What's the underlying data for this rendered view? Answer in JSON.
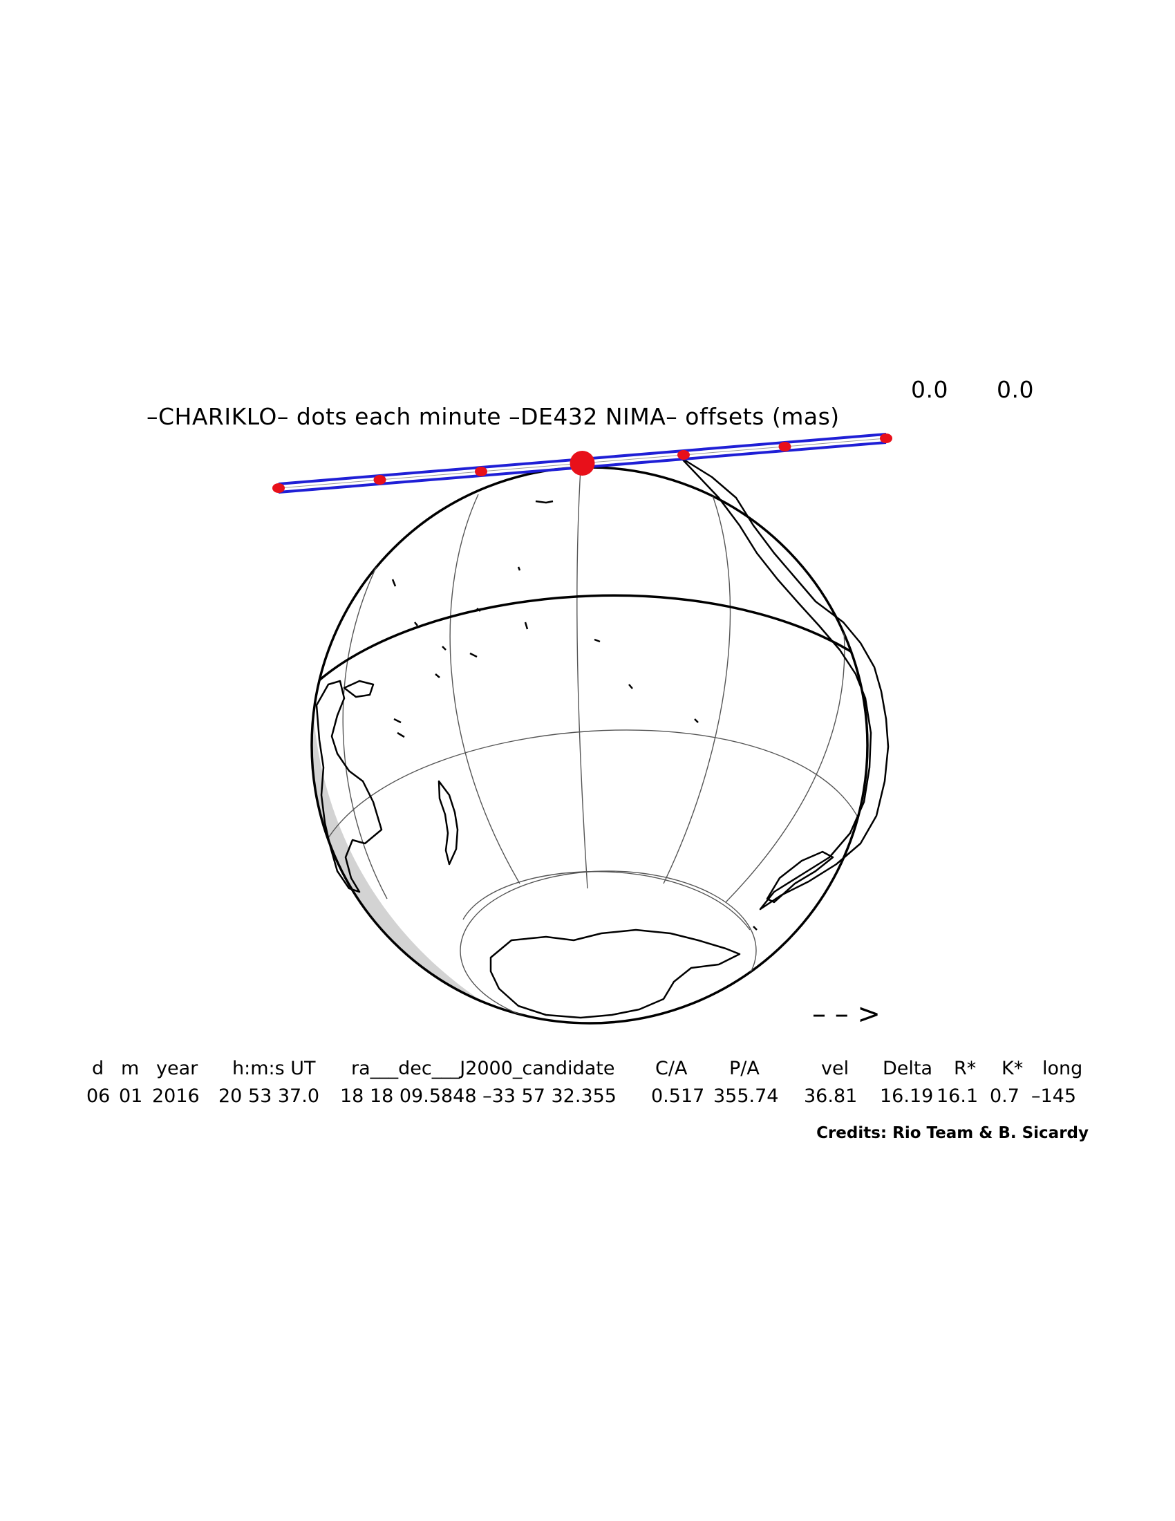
{
  "title": {
    "text": "–CHARIKLO– dots each minute –DE432 NIMA– offsets (mas)",
    "offset_ra": "0.0",
    "offset_dec": "0.0"
  },
  "direction_arrow": "– – >",
  "table": {
    "headers": [
      "d",
      "m",
      "year",
      "h:m:s UT",
      "ra___dec___J2000_candidate",
      "C/A",
      "P/A",
      "vel",
      "Delta",
      "R*",
      "K*",
      "long"
    ],
    "values": [
      "06",
      "01",
      "2016",
      "20 53 37.0",
      "18 18 09.5848 –33 57 32.355",
      "0.517",
      "355.74",
      "36.81",
      "16.19",
      "16.1",
      "0.7",
      "–145"
    ]
  },
  "credits": "Credits: Rio Team & B. Sicardy",
  "colors": {
    "path_band": "#1f1fd6",
    "minute_dots": "#e8101a",
    "globe_outline": "#000000",
    "grid": "#555555",
    "night_shade": "#cfcfcf"
  },
  "occultation": {
    "minute_dots_count": 7,
    "closest_approach_marker": "large red dot"
  }
}
